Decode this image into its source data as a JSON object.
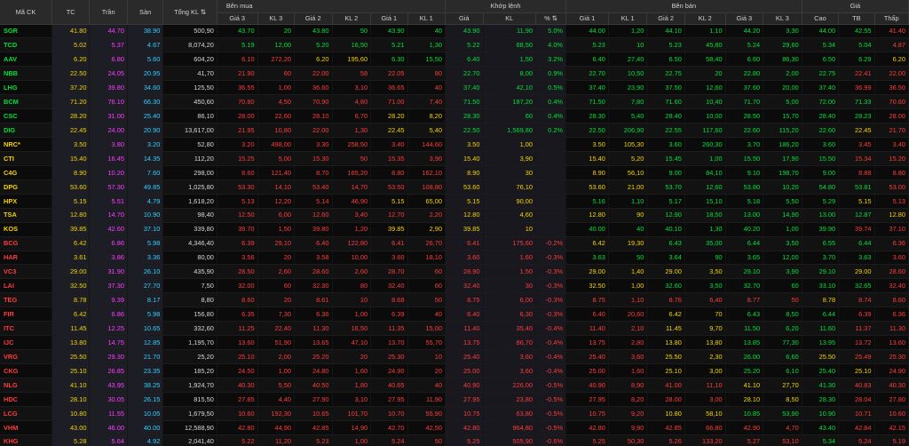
{
  "header": {
    "groups": {
      "buy": "Bên mua",
      "match": "Khớp lệnh",
      "sell": "Bên bán",
      "price": "Giá"
    },
    "cols": {
      "sym": "Mã CK",
      "ref": "TC",
      "ceil": "Trần",
      "floor": "Sàn",
      "vol": "Tổng KL",
      "b3p": "Giá 3",
      "b3v": "KL 3",
      "b2p": "Giá 2",
      "b2v": "KL 2",
      "b1p": "Giá 1",
      "b1v": "KL 1",
      "mp": "Giá",
      "mv": "KL",
      "chg": "%",
      "s1p": "Giá 1",
      "s1v": "KL 1",
      "s2p": "Giá 2",
      "s2v": "KL 2",
      "s3p": "Giá 3",
      "s3v": "KL 3",
      "hi": "Cao",
      "avg": "TB",
      "lo": "Thấp"
    }
  },
  "colors": {
    "up": "#00e03a",
    "down": "#ff3b3b",
    "ref": "#f4d400",
    "ceil": "#ff3cff",
    "floor": "#2fd0ff"
  },
  "rows": [
    {
      "s": "SGR",
      "c": "up",
      "v": [
        "41.80",
        "44.70",
        "38.90",
        "500,90",
        "43.70",
        "20",
        "43.80",
        "50",
        "43.90",
        "40",
        "43.90",
        "11,90",
        "5.0%",
        "44.00",
        "1,20",
        "44.10",
        "1,10",
        "44.20",
        "3,30",
        "44.00",
        "42.55",
        "41.40"
      ]
    },
    {
      "s": "TCD",
      "c": "up",
      "v": [
        "5.02",
        "5.37",
        "4.67",
        "8,074,20",
        "5.19",
        "12,00",
        "5.20",
        "16,50",
        "5.21",
        "1,30",
        "5.22",
        "68,50",
        "4.0%",
        "5.23",
        "10",
        "5.23",
        "45,80",
        "5.24",
        "29,60",
        "5.34",
        "5.04",
        "4.87"
      ]
    },
    {
      "s": "AAV",
      "c": "up",
      "v": [
        "6.20",
        "6.80",
        "5.60",
        "604,20",
        "6.10",
        "272,20",
        "6.20",
        "195,60",
        "6.30",
        "15,50",
        "6.40",
        "1,50",
        "3.2%",
        "6.40",
        "27,40",
        "6.50",
        "58,40",
        "6.60",
        "86,30",
        "6.50",
        "6.29",
        "6.20"
      ]
    },
    {
      "s": "NBB",
      "c": "up",
      "v": [
        "22.50",
        "24.05",
        "20.95",
        "41,70",
        "21.90",
        "60",
        "22.00",
        "58",
        "22.05",
        "80",
        "22.70",
        "8,00",
        "0.9%",
        "22.70",
        "10,50",
        "22.75",
        "20",
        "22.80",
        "2,00",
        "22.75",
        "22.41",
        "22.00"
      ]
    },
    {
      "s": "LHG",
      "c": "up",
      "v": [
        "37.20",
        "39.80",
        "34.60",
        "125,50",
        "36.55",
        "1,00",
        "36.60",
        "3,10",
        "36.65",
        "40",
        "37.40",
        "42,10",
        "0.5%",
        "37.40",
        "23,90",
        "37.50",
        "12,60",
        "37.60",
        "20,00",
        "37.40",
        "36.99",
        "36.50"
      ]
    },
    {
      "s": "BCM",
      "c": "up",
      "v": [
        "71.20",
        "76.10",
        "66.30",
        "450,60",
        "70.80",
        "4,50",
        "70.90",
        "4,80",
        "71.00",
        "7,40",
        "71.50",
        "187,20",
        "0.4%",
        "71.50",
        "7,80",
        "71.60",
        "10,40",
        "71.70",
        "5,00",
        "72.00",
        "71.33",
        "70.60"
      ]
    },
    {
      "s": "CSC",
      "c": "up",
      "v": [
        "28.20",
        "31.00",
        "25.40",
        "86,10",
        "28.00",
        "22,60",
        "28.10",
        "6,70",
        "28.20",
        "8,20",
        "28.30",
        "60",
        "0.4%",
        "28.30",
        "5,40",
        "28.40",
        "10,00",
        "28.50",
        "15,70",
        "28.40",
        "28.23",
        "28.00"
      ]
    },
    {
      "s": "DIG",
      "c": "up",
      "v": [
        "22.45",
        "24.00",
        "20.90",
        "13,617,00",
        "21.95",
        "10,80",
        "22.00",
        "1,30",
        "22.45",
        "5,40",
        "22.50",
        "1,569,80",
        "0.2%",
        "22.50",
        "206,90",
        "22.55",
        "117,60",
        "22.60",
        "115,20",
        "22.60",
        "22.45",
        "21.70"
      ]
    },
    {
      "s": "NRC*",
      "c": "rf",
      "v": [
        "3.50",
        "3.80",
        "3.20",
        "52,80",
        "3.20",
        "498,00",
        "3.30",
        "258,50",
        "3.40",
        "144,60",
        "3.50",
        "1,00",
        "",
        "3.50",
        "105,30",
        "3.60",
        "260,30",
        "3.70",
        "186,20",
        "3.60",
        "3.45",
        "3.40"
      ]
    },
    {
      "s": "CTI",
      "c": "rf",
      "v": [
        "15.40",
        "16.45",
        "14.35",
        "112,20",
        "15.25",
        "5,00",
        "15.30",
        "50",
        "15.35",
        "3,90",
        "15.40",
        "3,90",
        "",
        "15.40",
        "5,20",
        "15.45",
        "1,00",
        "15.50",
        "17,90",
        "15.50",
        "15.34",
        "15.20"
      ]
    },
    {
      "s": "C4G",
      "c": "rf",
      "v": [
        "8.90",
        "10.20",
        "7.60",
        "298,00",
        "8.60",
        "121,40",
        "8.70",
        "165,20",
        "8.80",
        "162,10",
        "8.90",
        "30",
        "",
        "8.90",
        "56,10",
        "9.00",
        "84,10",
        "9.10",
        "198,70",
        "9.00",
        "8.88",
        "8.80"
      ]
    },
    {
      "s": "DPG",
      "c": "rf",
      "v": [
        "53.60",
        "57.30",
        "49.85",
        "1,025,80",
        "53.30",
        "14,10",
        "53.40",
        "14,70",
        "53.50",
        "108,80",
        "53.60",
        "76,10",
        "",
        "53.60",
        "21,00",
        "53.70",
        "12,60",
        "53.80",
        "10,20",
        "54.80",
        "53.81",
        "53.00"
      ]
    },
    {
      "s": "HPX",
      "c": "rf",
      "v": [
        "5.15",
        "5.51",
        "4.79",
        "1,618,20",
        "5.13",
        "12,20",
        "5.14",
        "46,90",
        "5.15",
        "65,00",
        "5.15",
        "90,00",
        "",
        "5.16",
        "1,10",
        "5.17",
        "15,10",
        "5.18",
        "5,50",
        "5.29",
        "5.15",
        "5.13"
      ]
    },
    {
      "s": "TSA",
      "c": "rf",
      "v": [
        "12.80",
        "14.70",
        "10.90",
        "98,40",
        "12.50",
        "6,00",
        "12.60",
        "3,40",
        "12.70",
        "2,20",
        "12.80",
        "4,60",
        "",
        "12.80",
        "90",
        "12.90",
        "18,50",
        "13.00",
        "14,90",
        "13.00",
        "12.87",
        "12.80"
      ]
    },
    {
      "s": "KOS",
      "c": "rf",
      "v": [
        "39.85",
        "42.60",
        "37.10",
        "339,80",
        "39.70",
        "1,50",
        "39.80",
        "1,20",
        "39.85",
        "2,90",
        "39.85",
        "10",
        "",
        "40.00",
        "40",
        "40.10",
        "1,30",
        "40.20",
        "1,00",
        "39.90",
        "39.74",
        "37.10"
      ]
    },
    {
      "s": "BCG",
      "c": "dn",
      "v": [
        "6.42",
        "6.86",
        "5.98",
        "4,346,40",
        "6.39",
        "29,10",
        "6.40",
        "122,80",
        "6.41",
        "26,70",
        "6.41",
        "175,60",
        "-0.2%",
        "6.42",
        "19,30",
        "6.43",
        "35,00",
        "6.44",
        "3,50",
        "6.55",
        "6.44",
        "6.36"
      ]
    },
    {
      "s": "HAR",
      "c": "dn",
      "v": [
        "3.61",
        "3.86",
        "3.36",
        "80,00",
        "3.56",
        "20",
        "3.58",
        "10,00",
        "3.60",
        "18,10",
        "3.60",
        "1,60",
        "-0.3%",
        "3.63",
        "50",
        "3.64",
        "90",
        "3.65",
        "12,00",
        "3.70",
        "3.63",
        "3.60"
      ]
    },
    {
      "s": "VC3",
      "c": "dn",
      "v": [
        "29.00",
        "31.90",
        "26.10",
        "435,90",
        "28.50",
        "2,60",
        "28.60",
        "2,60",
        "28.70",
        "60",
        "28.90",
        "1,50",
        "-0.3%",
        "29.00",
        "1,40",
        "29.00",
        "3,50",
        "29.10",
        "3,90",
        "29.10",
        "29.00",
        "28.60"
      ]
    },
    {
      "s": "LAI",
      "c": "dn",
      "v": [
        "32.50",
        "37.30",
        "27.70",
        "7,50",
        "32.00",
        "60",
        "32.30",
        "80",
        "32.40",
        "60",
        "32.40",
        "30",
        "-0.3%",
        "32.50",
        "1,00",
        "32.60",
        "3,50",
        "32.70",
        "60",
        "33.10",
        "32.65",
        "32.40"
      ]
    },
    {
      "s": "TEG",
      "c": "dn",
      "v": [
        "8.78",
        "9.39",
        "8.17",
        "8,80",
        "8.60",
        "20",
        "8.61",
        "10",
        "8.68",
        "50",
        "8.75",
        "6,00",
        "-0.3%",
        "8.75",
        "1,10",
        "8.76",
        "6,40",
        "8.77",
        "50",
        "8.78",
        "8.74",
        "8.60"
      ]
    },
    {
      "s": "FIR",
      "c": "dn",
      "v": [
        "6.42",
        "6.86",
        "5.98",
        "156,80",
        "6.35",
        "7,30",
        "6.36",
        "1,00",
        "6.39",
        "40",
        "6.40",
        "6,30",
        "-0.3%",
        "6.40",
        "20,60",
        "6.42",
        "70",
        "6.43",
        "8,50",
        "6.44",
        "6.39",
        "6.36"
      ]
    },
    {
      "s": "ITC",
      "c": "dn",
      "v": [
        "11.45",
        "12.25",
        "10.65",
        "332,60",
        "11.25",
        "22,40",
        "11.30",
        "16,50",
        "11.35",
        "15,00",
        "11.40",
        "35,40",
        "-0.4%",
        "11.40",
        "2,10",
        "11.45",
        "9,70",
        "11.50",
        "6,20",
        "11.60",
        "11.37",
        "11.30"
      ]
    },
    {
      "s": "IJC",
      "c": "dn",
      "v": [
        "13.80",
        "14.75",
        "12.85",
        "1,195,70",
        "13.60",
        "51,90",
        "13.65",
        "47,10",
        "13.70",
        "55,70",
        "13.75",
        "86,70",
        "-0.4%",
        "13.75",
        "2,80",
        "13.80",
        "13,80",
        "13.85",
        "77,30",
        "13.95",
        "13.72",
        "13.60"
      ]
    },
    {
      "s": "VRG",
      "c": "dn",
      "v": [
        "25.50",
        "29.30",
        "21.70",
        "25,20",
        "25.10",
        "2,00",
        "25.20",
        "20",
        "25.30",
        "10",
        "25.40",
        "3,60",
        "-0.4%",
        "25.40",
        "3,60",
        "25.50",
        "2,30",
        "26.00",
        "6,60",
        "25.50",
        "25.49",
        "25.30"
      ]
    },
    {
      "s": "CKG",
      "c": "dn",
      "v": [
        "25.10",
        "26.85",
        "23.35",
        "185,20",
        "24.50",
        "1,00",
        "24.80",
        "1,60",
        "24.90",
        "20",
        "25.00",
        "3,60",
        "-0.4%",
        "25.00",
        "1,60",
        "25.10",
        "3,00",
        "25.20",
        "6,10",
        "25.40",
        "25.10",
        "24.90"
      ]
    },
    {
      "s": "NLG",
      "c": "dn",
      "v": [
        "41.10",
        "43.95",
        "38.25",
        "1,924,70",
        "40.30",
        "5,50",
        "40.50",
        "1,80",
        "40.65",
        "40",
        "40.90",
        "226,00",
        "-0.5%",
        "40.90",
        "8,90",
        "41.00",
        "11,10",
        "41.10",
        "27,70",
        "41.30",
        "40.83",
        "40.30"
      ]
    },
    {
      "s": "HDC",
      "c": "dn",
      "v": [
        "28.10",
        "30.05",
        "26.15",
        "815,50",
        "27.85",
        "4,40",
        "27.90",
        "3,10",
        "27.95",
        "11,90",
        "27.95",
        "23,80",
        "-0.5%",
        "27.95",
        "8,20",
        "28.00",
        "3,00",
        "28.10",
        "8,50",
        "28.30",
        "28.04",
        "27.80"
      ]
    },
    {
      "s": "LCG",
      "c": "dn",
      "v": [
        "10.80",
        "11.55",
        "10.05",
        "1,679,50",
        "10.60",
        "192,30",
        "10.65",
        "101,70",
        "10.70",
        "55,90",
        "10.75",
        "63,80",
        "-0.5%",
        "10.75",
        "9,20",
        "10.80",
        "58,10",
        "10.85",
        "53,90",
        "10.90",
        "10.71",
        "10.60"
      ]
    },
    {
      "s": "VHM",
      "c": "dn",
      "v": [
        "43.00",
        "46.00",
        "40.00",
        "12,588,90",
        "42.80",
        "44,90",
        "42.85",
        "14,90",
        "42.70",
        "42,50",
        "42.80",
        "964,80",
        "-0.5%",
        "42.80",
        "9,90",
        "42.85",
        "66,80",
        "42.90",
        "4,70",
        "43.40",
        "42.84",
        "42.15"
      ]
    },
    {
      "s": "KHG",
      "c": "dn",
      "v": [
        "5.28",
        "5.64",
        "4.92",
        "2,041,40",
        "5.22",
        "11,20",
        "5.23",
        "1,00",
        "5.24",
        "50",
        "5.25",
        "505,90",
        "-0.6%",
        "5.25",
        "50,30",
        "5.26",
        "133,20",
        "5.27",
        "53,10",
        "5.34",
        "5.24",
        "5.19"
      ]
    }
  ]
}
